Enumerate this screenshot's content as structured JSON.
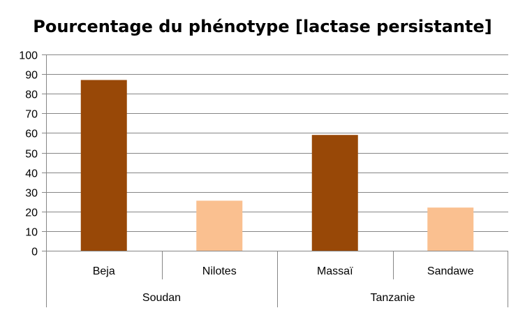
{
  "chart_data": {
    "type": "bar",
    "title": "Pourcentage du phénotype [lactase persistante]",
    "categories": [
      "Beja",
      "Nilotes",
      "Massaï",
      "Sandawe"
    ],
    "groups": [
      {
        "label": "Soudan",
        "categories": [
          "Beja",
          "Nilotes"
        ]
      },
      {
        "label": "Tanzanie",
        "categories": [
          "Massaï",
          "Sandawe"
        ]
      }
    ],
    "values": [
      87,
      25.5,
      59,
      22
    ],
    "colors": [
      "#984807",
      "#fac090",
      "#984807",
      "#fac090"
    ],
    "ylim": [
      0,
      100
    ],
    "yticks": [
      0,
      10,
      20,
      30,
      40,
      50,
      60,
      70,
      80,
      90,
      100
    ],
    "grid": true,
    "legend": "none"
  }
}
